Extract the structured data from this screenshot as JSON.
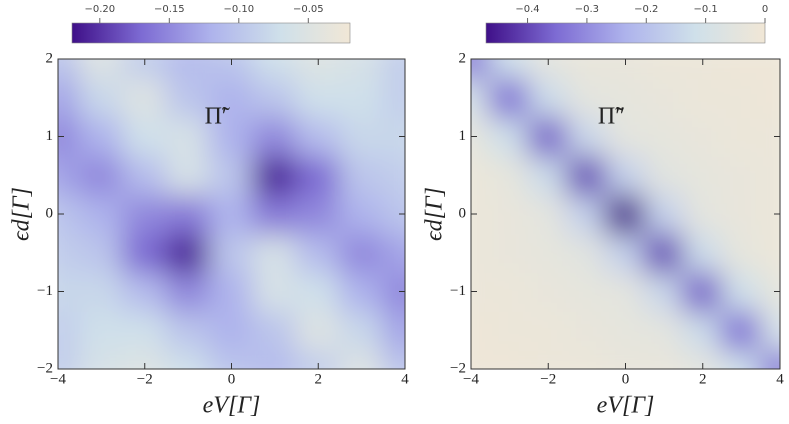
{
  "chart_data": [
    {
      "type": "heatmap",
      "annotation": "Π̃′",
      "xlabel": "eV[Γ]",
      "ylabel": "ϵd[Γ]",
      "x": [
        -4,
        -3,
        -2,
        -1,
        0,
        1,
        2,
        3,
        4
      ],
      "y": [
        -2,
        -1.5,
        -1,
        -0.5,
        0,
        0.5,
        1,
        1.5,
        2
      ],
      "z": [
        [
          -0.09,
          -0.06,
          -0.05,
          -0.07,
          -0.1,
          -0.11,
          -0.09,
          -0.05,
          -0.1
        ],
        [
          -0.09,
          -0.07,
          -0.07,
          -0.1,
          -0.12,
          -0.1,
          -0.05,
          -0.08,
          -0.13
        ],
        [
          -0.08,
          -0.08,
          -0.11,
          -0.15,
          -0.12,
          -0.06,
          -0.07,
          -0.12,
          -0.15
        ],
        [
          -0.09,
          -0.1,
          -0.17,
          -0.21,
          -0.1,
          -0.06,
          -0.11,
          -0.15,
          -0.13
        ],
        [
          -0.1,
          -0.12,
          -0.15,
          -0.16,
          -0.12,
          -0.16,
          -0.15,
          -0.12,
          -0.1
        ],
        [
          -0.13,
          -0.15,
          -0.11,
          -0.06,
          -0.1,
          -0.21,
          -0.17,
          -0.1,
          -0.09
        ],
        [
          -0.15,
          -0.12,
          -0.07,
          -0.06,
          -0.12,
          -0.15,
          -0.11,
          -0.08,
          -0.08
        ],
        [
          -0.13,
          -0.08,
          -0.05,
          -0.1,
          -0.12,
          -0.1,
          -0.07,
          -0.07,
          -0.09
        ],
        [
          -0.1,
          -0.05,
          -0.09,
          -0.11,
          -0.1,
          -0.07,
          -0.05,
          -0.06,
          -0.09
        ]
      ],
      "xlim": [
        -4,
        4
      ],
      "ylim": [
        -2,
        2
      ],
      "xticks": [
        {
          "value": -4,
          "label": "−4"
        },
        {
          "value": -2,
          "label": "−2"
        },
        0,
        2,
        4
      ],
      "yticks": [
        {
          "value": -2,
          "label": "−2"
        },
        {
          "value": -1,
          "label": "−1"
        },
        0,
        1,
        2
      ],
      "colorbar": {
        "lim": [
          -0.22,
          -0.02
        ],
        "ticks": [
          {
            "value": -0.2,
            "label": "−0.20"
          },
          {
            "value": -0.15,
            "label": "−0.15"
          },
          {
            "value": -0.1,
            "label": "−0.10"
          },
          {
            "value": -0.05,
            "label": "−0.05"
          }
        ]
      },
      "colorscale": [
        "#3f0f88",
        "#7d6bd3",
        "#aeb3ec",
        "#cfe0ea",
        "#f1e7d6"
      ]
    },
    {
      "type": "heatmap",
      "annotation": "Π̃″",
      "xlabel": "eV[Γ]",
      "ylabel": "ϵd[Γ]",
      "x": [
        -4,
        -3,
        -2,
        -1,
        0,
        1,
        2,
        3,
        4
      ],
      "y": [
        -2,
        -1.5,
        -1,
        -0.5,
        0,
        0.5,
        1,
        1.5,
        2
      ],
      "z": [
        [
          -0.01,
          -0.01,
          -0.02,
          -0.02,
          -0.03,
          -0.03,
          -0.05,
          -0.12,
          -0.33
        ],
        [
          -0.01,
          -0.02,
          -0.02,
          -0.03,
          -0.04,
          -0.05,
          -0.13,
          -0.35,
          -0.1
        ],
        [
          -0.02,
          -0.02,
          -0.03,
          -0.04,
          -0.05,
          -0.14,
          -0.37,
          -0.12,
          -0.04
        ],
        [
          -0.02,
          -0.03,
          -0.04,
          -0.06,
          -0.16,
          -0.4,
          -0.13,
          -0.04,
          -0.02
        ],
        [
          -0.02,
          -0.03,
          -0.05,
          -0.16,
          -0.47,
          -0.16,
          -0.05,
          -0.03,
          -0.02
        ],
        [
          -0.02,
          -0.04,
          -0.13,
          -0.4,
          -0.16,
          -0.06,
          -0.04,
          -0.03,
          -0.02
        ],
        [
          -0.04,
          -0.12,
          -0.37,
          -0.14,
          -0.05,
          -0.04,
          -0.03,
          -0.02,
          -0.02
        ],
        [
          -0.1,
          -0.35,
          -0.13,
          -0.05,
          -0.04,
          -0.03,
          -0.02,
          -0.02,
          -0.01
        ],
        [
          -0.33,
          -0.12,
          -0.05,
          -0.03,
          -0.03,
          -0.02,
          -0.02,
          -0.01,
          -0.01
        ]
      ],
      "xlim": [
        -4,
        4
      ],
      "ylim": [
        -2,
        2
      ],
      "xticks": [
        {
          "value": -4,
          "label": "−4"
        },
        {
          "value": -2,
          "label": "−2"
        },
        0,
        2,
        4
      ],
      "yticks": [
        {
          "value": -2,
          "label": "−2"
        },
        {
          "value": -1,
          "label": "−1"
        },
        0,
        1,
        2
      ],
      "colorbar": {
        "lim": [
          -0.47,
          0
        ],
        "ticks": [
          {
            "value": -0.4,
            "label": "−0.4"
          },
          {
            "value": -0.3,
            "label": "−0.3"
          },
          {
            "value": -0.2,
            "label": "−0.2"
          },
          {
            "value": -0.1,
            "label": "−0.1"
          },
          0
        ]
      },
      "colorscale": [
        "#3f0f88",
        "#7d6bd3",
        "#aeb3ec",
        "#cfe0ea",
        "#f1e7d6"
      ]
    }
  ]
}
